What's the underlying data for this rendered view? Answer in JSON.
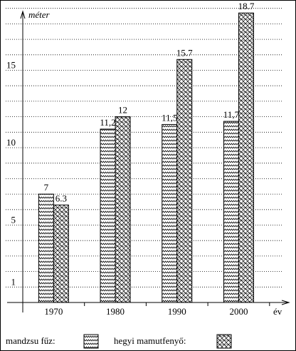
{
  "chart_data": {
    "type": "bar",
    "y_label": "méter",
    "x_label": "év",
    "categories": [
      "1970",
      "1980",
      "1990",
      "2000"
    ],
    "series": [
      {
        "name": "mandzsu fűz:",
        "color": "#000000",
        "pattern": "zigzag",
        "values": [
          7,
          11.2,
          11.5,
          11.7
        ],
        "value_labels": [
          "7",
          "11,2",
          "11,5",
          "11,7"
        ]
      },
      {
        "name": "hegyi mamutfenyő:",
        "color": "#000000",
        "pattern": "crosshatch",
        "values": [
          6.3,
          12,
          15.7,
          18.7
        ],
        "value_labels": [
          "6.3",
          "12",
          "15.7",
          "18.7"
        ]
      }
    ],
    "ylim": [
      0,
      19
    ],
    "yticks": [
      1,
      5,
      10,
      15
    ],
    "minor_yticks": [
      2,
      3,
      4,
      6,
      7,
      8,
      9,
      11,
      12,
      13,
      14,
      16,
      17,
      18,
      19
    ],
    "grid": true
  }
}
